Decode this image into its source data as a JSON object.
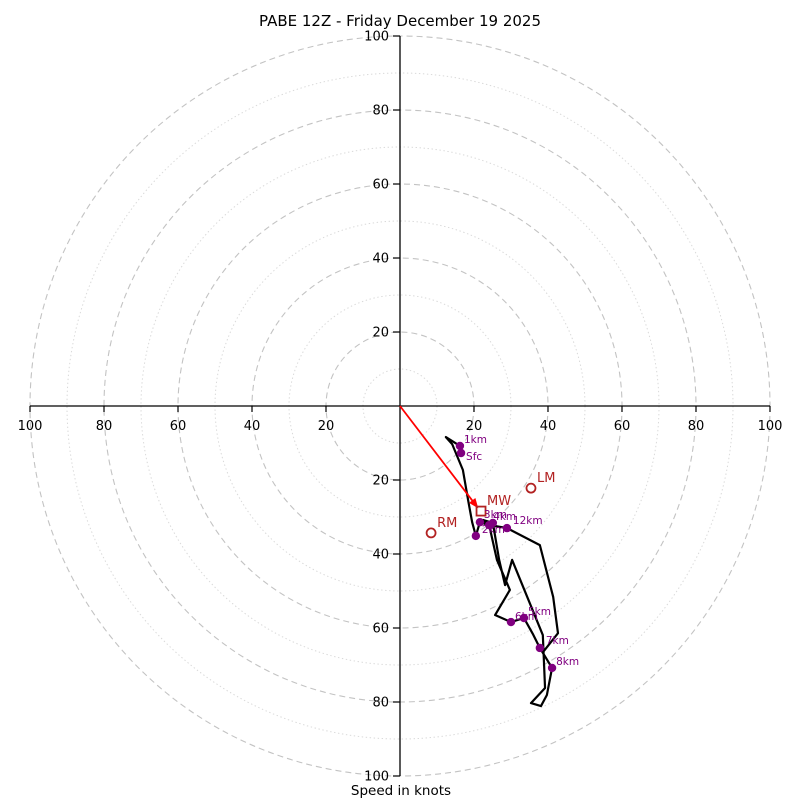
{
  "chart_data": {
    "type": "line",
    "subtype": "hodograph-polar",
    "title": "PABE 12Z - Friday December 19 2025",
    "xlabel": "Speed in knots",
    "axis_ticks_knots": [
      20,
      40,
      60,
      80,
      100
    ],
    "max_speed_kt": 100,
    "major_rings_kt": [
      20,
      40,
      60,
      80,
      100
    ],
    "minor_rings_kt": [
      10,
      30,
      50,
      70,
      90
    ],
    "legend": "none",
    "grid": "polar dashed major / dotted minor",
    "trace_uv_knots": [
      [
        16.5,
        -12.7
      ],
      [
        16.2,
        -10.8
      ],
      [
        12.4,
        -8.4
      ],
      [
        14.1,
        -10.3
      ],
      [
        17.0,
        -17.3
      ],
      [
        18.4,
        -25.4
      ],
      [
        19.5,
        -31.4
      ],
      [
        20.5,
        -35.1
      ],
      [
        21.6,
        -31.4
      ],
      [
        24.1,
        -32.2
      ],
      [
        26.2,
        -41.6
      ],
      [
        29.7,
        -49.7
      ],
      [
        25.7,
        -56.5
      ],
      [
        30.0,
        -58.4
      ],
      [
        33.5,
        -57.3
      ],
      [
        35.9,
        -61.6
      ],
      [
        37.8,
        -65.4
      ],
      [
        41.1,
        -70.8
      ],
      [
        39.7,
        -78.1
      ],
      [
        38.1,
        -81.1
      ],
      [
        35.4,
        -80.3
      ],
      [
        39.2,
        -76.2
      ],
      [
        38.6,
        -61.9
      ],
      [
        30.3,
        -41.6
      ],
      [
        28.4,
        -48.4
      ],
      [
        26.8,
        -41.6
      ],
      [
        25.1,
        -31.6
      ],
      [
        22.4,
        -30.8
      ],
      [
        24.3,
        -32.2
      ],
      [
        28.9,
        -33.0
      ],
      [
        37.8,
        -37.6
      ],
      [
        41.4,
        -51.6
      ],
      [
        42.7,
        -61.4
      ],
      [
        38.9,
        -66.2
      ]
    ],
    "levels": [
      {
        "label": "Sfc",
        "u": 16.5,
        "v": -12.7,
        "lox": 5,
        "loy": 7
      },
      {
        "label": "1km",
        "u": 16.2,
        "v": -10.8,
        "lox": 4,
        "loy": -3
      },
      {
        "label": "2km",
        "u": 20.5,
        "v": -35.1,
        "lox": 6,
        "loy": -3
      },
      {
        "label": "3km",
        "u": 21.6,
        "v": -31.4,
        "lox": 4,
        "loy": -4
      },
      {
        "label": "4km",
        "u": 24.1,
        "v": -32.2,
        "lox": 4,
        "loy": -5
      },
      {
        "label": "5km",
        "u": 33.5,
        "v": -57.3,
        "lox": 4,
        "loy": -3
      },
      {
        "label": "6km",
        "u": 30.0,
        "v": -58.4,
        "lox": 4,
        "loy": -2
      },
      {
        "label": "7km",
        "u": 37.8,
        "v": -65.4,
        "lox": 6,
        "loy": -4
      },
      {
        "label": "8km",
        "u": 41.1,
        "v": -70.8,
        "lox": 4,
        "loy": -3
      },
      {
        "label": "",
        "u": 25.1,
        "v": -31.6,
        "lox": 0,
        "loy": 0
      },
      {
        "label": "12km",
        "u": 28.9,
        "v": -33.0,
        "lox": 6,
        "loy": -4
      }
    ],
    "storm_markers": [
      {
        "label": "RM",
        "u": 8.4,
        "v": -34.3,
        "marker": "circle"
      },
      {
        "label": "LM",
        "u": 35.4,
        "v": -22.2,
        "marker": "circle"
      },
      {
        "label": "MW",
        "u": 21.9,
        "v": -28.4,
        "marker": "square"
      }
    ],
    "mean_wind_arrow": {
      "from_u": 0,
      "from_v": 0,
      "to_u": 20.5,
      "to_v": -26.8
    },
    "colors": {
      "trace": "#000000",
      "level_marker": "#800080",
      "storm_marker": "#B22222",
      "arrow": "#FF0000",
      "major_ring": "#c3c3c3",
      "minor_ring": "#d9d9d9",
      "axis": "#000000",
      "tick_label": "#000000"
    }
  }
}
